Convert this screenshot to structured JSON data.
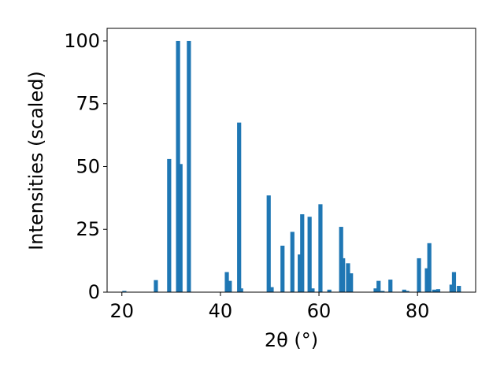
{
  "chart_data": {
    "type": "bar",
    "x_label": "2θ (°)",
    "y_label": "Intensities (scaled)",
    "x": [
      20.5,
      26.9,
      29.6,
      31.4,
      31.9,
      33.6,
      41.3,
      41.9,
      43.8,
      44.2,
      49.8,
      50.4,
      52.6,
      54.6,
      56.1,
      56.6,
      58.1,
      58.7,
      60.3,
      62.1,
      64.5,
      64.9,
      65.9,
      66.5,
      71.5,
      72.1,
      72.9,
      74.5,
      77.3,
      77.9,
      80.3,
      81.9,
      82.4,
      83.4,
      84.2,
      86.9,
      87.4,
      88.4
    ],
    "values": [
      0.5,
      4.8,
      53,
      100,
      51,
      100,
      8,
      4.5,
      67.5,
      1.5,
      38.5,
      2,
      18.5,
      24,
      15,
      31,
      30,
      1.5,
      35,
      1,
      26,
      13.5,
      11.5,
      7.5,
      1.5,
      4.5,
      0.5,
      5,
      1,
      0.5,
      13.5,
      9.5,
      19.5,
      1,
      1.2,
      3,
      8,
      2.5
    ],
    "color": "#1f77b4",
    "xlim": [
      17,
      91.8
    ],
    "xticks": [
      20,
      40,
      60,
      80
    ],
    "ylim": [
      0,
      105
    ],
    "yticks": [
      0,
      25,
      50,
      75,
      100
    ]
  }
}
